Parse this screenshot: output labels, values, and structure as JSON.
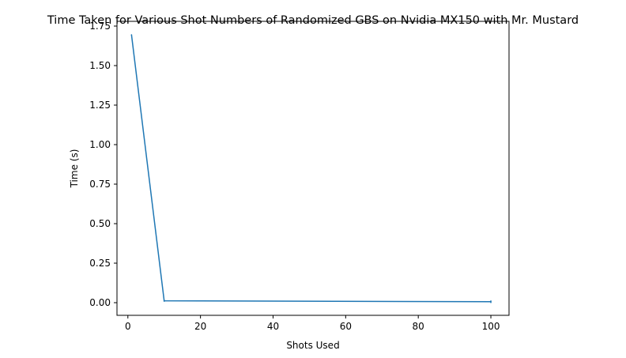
{
  "chart_data": {
    "type": "line",
    "title": "Time Taken for Various Shot Numbers of Randomized GBS on Nvidia MX150 with Mr. Mustard",
    "xlabel": "Shots Used",
    "ylabel": "Time (s)",
    "xlim": [
      -3,
      105
    ],
    "ylim": [
      -0.08,
      1.78
    ],
    "xticks": [
      0,
      20,
      40,
      60,
      80,
      100
    ],
    "xtick_labels": [
      "0",
      "20",
      "40",
      "60",
      "80",
      "100"
    ],
    "yticks": [
      0.0,
      0.25,
      0.5,
      0.75,
      1.0,
      1.25,
      1.5,
      1.75
    ],
    "ytick_labels": [
      "0.00",
      "0.25",
      "0.50",
      "0.75",
      "1.00",
      "1.25",
      "1.50",
      "1.75"
    ],
    "grid": false,
    "series": [
      {
        "color": "#1f77b4",
        "x": [
          1,
          10,
          100
        ],
        "y": [
          1.695,
          0.012,
          0.006
        ],
        "error": [
          0.0,
          0.006,
          0.008
        ]
      }
    ]
  }
}
